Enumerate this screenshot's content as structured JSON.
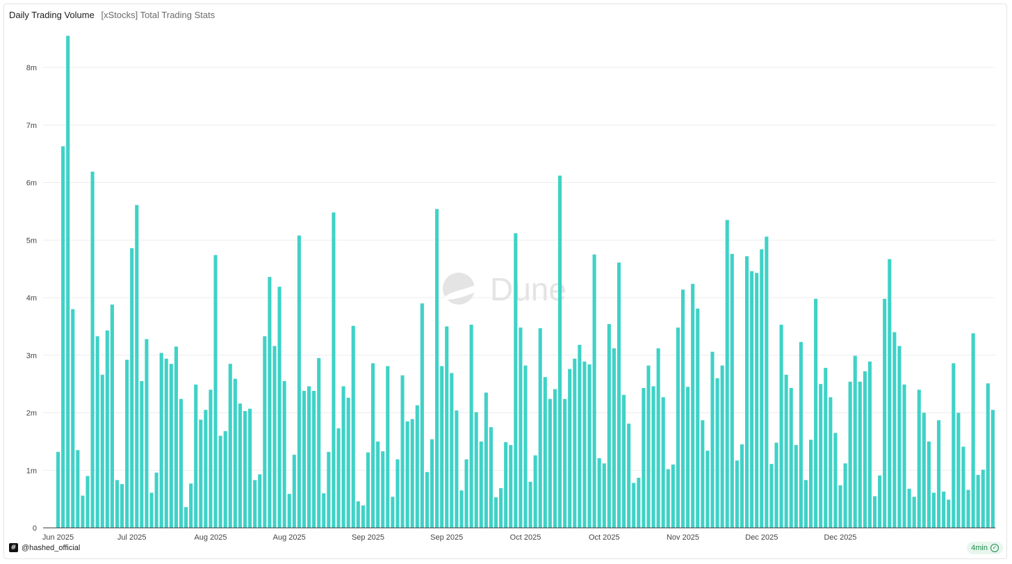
{
  "header": {
    "title": "Daily Trading Volume",
    "subtitle": "[xStocks] Total Trading Stats"
  },
  "watermark": "Dune",
  "footer": {
    "handle": "@hashed_official",
    "refresh_badge": "4min",
    "logo_glyph": "#",
    "check_icon": "check-circle-icon"
  },
  "colors": {
    "bar": "#3fd2c7",
    "grid": "#ececec",
    "axis_text": "#444444",
    "watermark": "#e4e4e4"
  },
  "chart_data": {
    "type": "bar",
    "title": "Daily Trading Volume",
    "subtitle": "[xStocks] Total Trading Stats",
    "xlabel": "",
    "ylabel": "",
    "ylim": [
      0,
      8600000
    ],
    "y_ticks": [
      {
        "value": 0,
        "label": "0"
      },
      {
        "value": 1000000,
        "label": "1m"
      },
      {
        "value": 2000000,
        "label": "2m"
      },
      {
        "value": 3000000,
        "label": "3m"
      },
      {
        "value": 4000000,
        "label": "4m"
      },
      {
        "value": 5000000,
        "label": "5m"
      },
      {
        "value": 6000000,
        "label": "6m"
      },
      {
        "value": 7000000,
        "label": "7m"
      },
      {
        "value": 8000000,
        "label": "8m"
      }
    ],
    "x_ticks": [
      {
        "index": 0,
        "label": "Jun 2025"
      },
      {
        "index": 15,
        "label": "Jul 2025"
      },
      {
        "index": 31,
        "label": "Aug 2025"
      },
      {
        "index": 47,
        "label": "Aug 2025"
      },
      {
        "index": 63,
        "label": "Sep 2025"
      },
      {
        "index": 79,
        "label": "Sep 2025"
      },
      {
        "index": 95,
        "label": "Oct 2025"
      },
      {
        "index": 111,
        "label": "Oct 2025"
      },
      {
        "index": 127,
        "label": "Nov 2025"
      },
      {
        "index": 143,
        "label": "Dec 2025"
      },
      {
        "index": 159,
        "label": "Dec 2025"
      }
    ],
    "grid": true,
    "legend": "none",
    "series": [
      {
        "values": [
          1320000,
          6630000,
          8550000,
          3800000,
          1350000,
          560000,
          900000,
          6190000,
          3330000,
          2660000,
          3430000,
          3880000,
          830000,
          760000,
          2920000,
          4860000,
          5610000,
          2550000,
          3280000,
          610000,
          960000,
          3040000,
          2940000,
          2850000,
          3150000,
          2240000,
          360000,
          770000,
          2490000,
          1880000,
          2050000,
          2400000,
          4740000,
          1600000,
          1680000,
          2850000,
          2590000,
          2160000,
          2030000,
          2070000,
          830000,
          930000,
          3330000,
          4360000,
          3160000,
          4190000,
          2550000,
          590000,
          1270000,
          5080000,
          2380000,
          2460000,
          2380000,
          2950000,
          600000,
          1320000,
          5480000,
          1730000,
          2460000,
          2260000,
          3510000,
          460000,
          390000,
          1310000,
          2860000,
          1500000,
          1330000,
          2810000,
          540000,
          1190000,
          2650000,
          1850000,
          1890000,
          2130000,
          3900000,
          970000,
          1540000,
          5540000,
          2810000,
          3500000,
          2690000,
          2040000,
          650000,
          1190000,
          3530000,
          2010000,
          1500000,
          2350000,
          1750000,
          530000,
          690000,
          1490000,
          1440000,
          5120000,
          3480000,
          2820000,
          800000,
          1260000,
          3470000,
          2620000,
          2240000,
          2410000,
          6120000,
          2240000,
          2760000,
          2940000,
          3180000,
          2890000,
          2840000,
          4750000,
          1210000,
          1120000,
          3540000,
          3120000,
          4610000,
          2310000,
          1810000,
          780000,
          870000,
          2430000,
          2820000,
          2460000,
          3120000,
          2270000,
          1020000,
          1100000,
          3480000,
          4140000,
          2450000,
          4240000,
          3810000,
          1870000,
          1340000,
          3060000,
          2600000,
          2820000,
          5350000,
          4760000,
          1170000,
          1450000,
          4720000,
          4460000,
          4430000,
          4840000,
          5060000,
          1110000,
          1480000,
          3530000,
          2660000,
          2430000,
          1440000,
          3230000,
          830000,
          1530000,
          3980000,
          2500000,
          2780000,
          2270000,
          1650000,
          740000,
          1120000,
          2540000,
          2990000,
          2540000,
          2720000,
          2890000,
          550000,
          910000,
          3980000,
          4670000,
          3400000,
          3160000,
          2490000,
          680000,
          540000,
          2400000,
          2000000,
          1500000,
          610000,
          1870000,
          630000,
          490000,
          2860000,
          2000000,
          1410000,
          660000,
          3380000,
          920000,
          1010000,
          2510000,
          2050000
        ]
      }
    ]
  }
}
